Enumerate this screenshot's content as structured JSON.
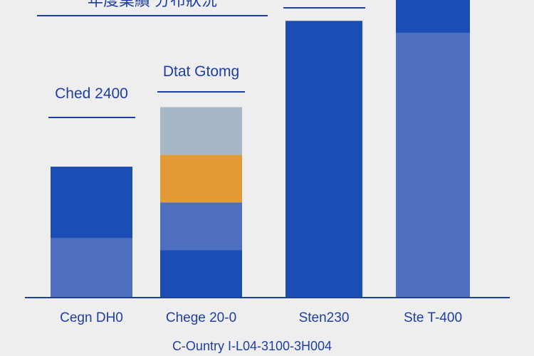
{
  "chart_data": {
    "type": "bar",
    "stacked": true,
    "title": "年度業績 分布狀況",
    "xlabel": "C-Ountry I-L04-3100-3H004",
    "ylabel": "",
    "categories": [
      "Cegn DH0",
      "Chege 20-0",
      "Sten230",
      "Ste T-400"
    ],
    "bar_annotations": [
      "Ched 2400",
      "Dtat Gtomg",
      "",
      ""
    ],
    "ylim": [
      0,
      100
    ],
    "grid": false,
    "legend": "none",
    "segments": [
      {
        "category": "Cegn DH0",
        "stack": [
          {
            "value": 20,
            "color": "#4e6fbf"
          },
          {
            "value": 24,
            "color": "#1b4db5"
          }
        ]
      },
      {
        "category": "Chege 20-0",
        "stack": [
          {
            "value": 16,
            "color": "#1b4db5"
          },
          {
            "value": 16,
            "color": "#4e6fbf"
          },
          {
            "value": 16,
            "color": "#e39a35"
          },
          {
            "value": 16,
            "color": "#a7b7c7"
          }
        ]
      },
      {
        "category": "Sten230",
        "stack": [
          {
            "value": 93,
            "color": "#1b4db5"
          }
        ]
      },
      {
        "category": "Ste T-400",
        "stack": [
          {
            "value": 89,
            "color": "#4e6fbf"
          },
          {
            "value": 11,
            "color": "#1b4db5"
          }
        ]
      }
    ]
  }
}
